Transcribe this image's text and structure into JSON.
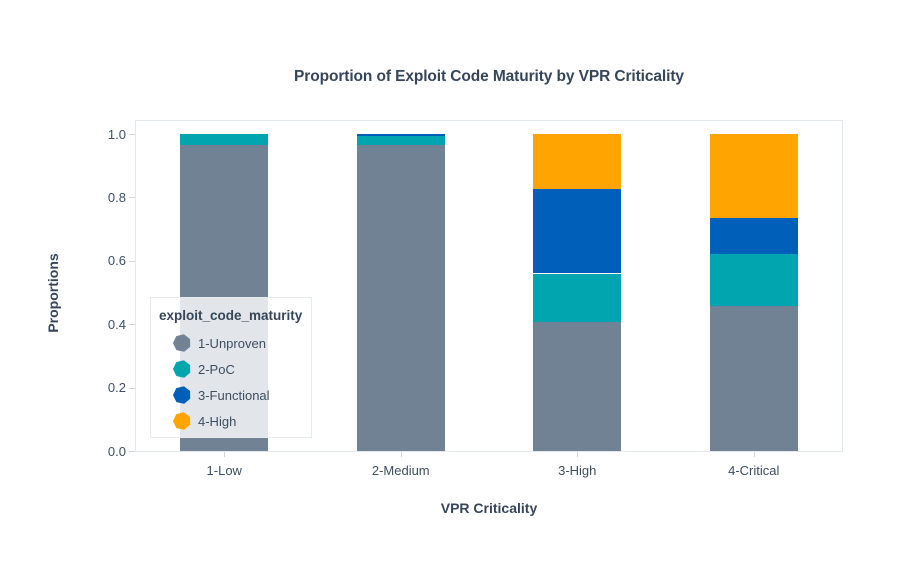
{
  "title": "Proportion of Exploit Code Maturity by VPR Criticality",
  "chart_data": {
    "type": "bar",
    "stacked": true,
    "title": "Proportion of Exploit Code Maturity by VPR Criticality",
    "xlabel": "VPR Criticality",
    "ylabel": "Proportions",
    "ylim": [
      0.0,
      1.0
    ],
    "grid": false,
    "yticks": [
      0.0,
      0.2,
      0.4,
      0.6,
      0.8,
      1.0
    ],
    "ytick_labels": [
      "0.0",
      "0.2",
      "0.4",
      "0.6",
      "0.8",
      "1.0"
    ],
    "categories": [
      "1-Low",
      "2-Medium",
      "3-High",
      "4-Critical"
    ],
    "series": [
      {
        "name": "1-Unproven",
        "color": "#708294",
        "values": [
          0.964,
          0.966,
          0.406,
          0.459
        ]
      },
      {
        "name": "2-PoC",
        "color": "#00a5b0",
        "values": [
          0.036,
          0.028,
          0.154,
          0.161
        ]
      },
      {
        "name": "3-Functional",
        "color": "#005fb8",
        "values": [
          0.0,
          0.006,
          0.267,
          0.115
        ]
      },
      {
        "name": "4-High",
        "color": "#ffa400",
        "values": [
          0.0,
          0.0,
          0.173,
          0.265
        ]
      }
    ],
    "legend": {
      "title": "exploit_code_maturity",
      "position": "inside bottom-left",
      "marker_shape": "heptagon"
    }
  },
  "colors": {
    "title_text": "#35465a",
    "axis_title_text": "#35465a",
    "tick_label_text": "#3d4e62",
    "plot_border": "#e2e7eb",
    "tick_mark": "#cdd4da",
    "legend_border": "#e7eaed",
    "legend_background": "rgba(255,255,255,0.8)",
    "background": "#ffffff"
  }
}
